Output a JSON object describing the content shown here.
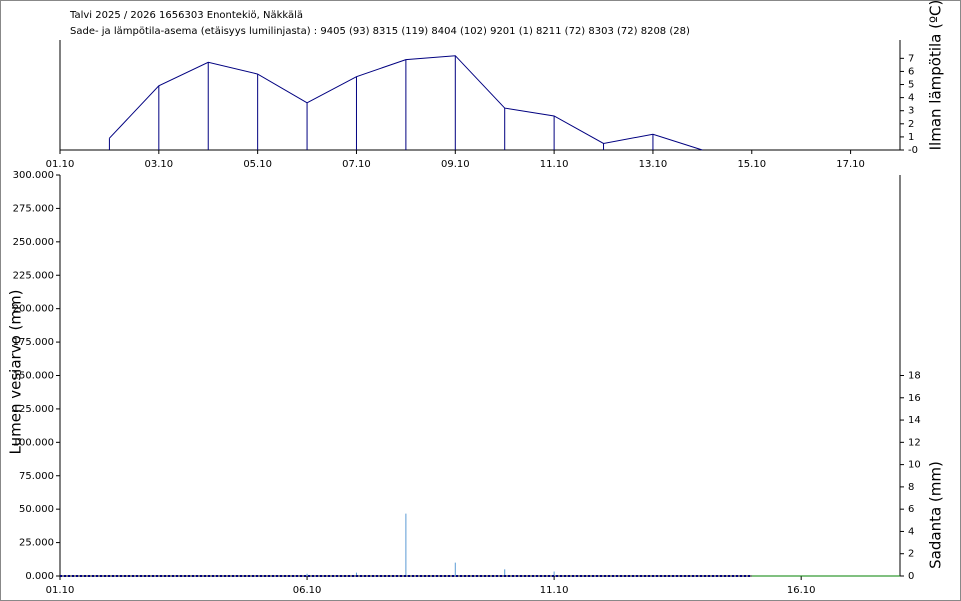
{
  "chart_data": [
    {
      "type": "line",
      "title": "Talvi 2025 / 2026 1656303 Enontekiö, Näkkälä",
      "subtitle": "Sade- ja lämpötila-asema (etäisyys lumilinjasta) :  9405 (93) 8315 (119) 8404 (102) 9201 (1) 8211 (72) 8303 (72) 8208 (28)",
      "y_label": "Ilman lämpötila (ºC)",
      "x": [
        2,
        3,
        4,
        5,
        6,
        7,
        8,
        9,
        10,
        11,
        12,
        13,
        14
      ],
      "values": [
        0.9,
        4.9,
        6.7,
        5.8,
        3.6,
        5.6,
        6.9,
        7.2,
        3.2,
        2.6,
        0.5,
        1.2,
        0
      ],
      "color": "#000080",
      "drop_lines": true,
      "xlim": [
        1,
        18
      ],
      "xticks": [
        {
          "value": 1,
          "label": "01.10"
        },
        {
          "value": 3,
          "label": "03.10"
        },
        {
          "value": 5,
          "label": "05.10"
        },
        {
          "value": 7,
          "label": "07.10"
        },
        {
          "value": 9,
          "label": "09.10"
        },
        {
          "value": 11,
          "label": "11.10"
        },
        {
          "value": 13,
          "label": "13.10"
        },
        {
          "value": 15,
          "label": "15.10"
        },
        {
          "value": 17,
          "label": "17.10"
        }
      ],
      "ylim": [
        0,
        8.4
      ],
      "yticks": [
        {
          "value": 0,
          "label": "-0"
        },
        1,
        2,
        3,
        4,
        5,
        6,
        7
      ]
    },
    {
      "type": "combo",
      "y_label": "Lumen vesiarvo (mm)",
      "y2_label": "Sadanta (mm)",
      "xlim": [
        1,
        18
      ],
      "xticks": [
        {
          "value": 1,
          "label": "01.10"
        },
        {
          "value": 6,
          "label": "06.10"
        },
        {
          "value": 11,
          "label": "11.10"
        },
        {
          "value": 16,
          "label": "16.10"
        }
      ],
      "ylim": [
        0,
        300
      ],
      "yticks": [
        {
          "value": 0,
          "label": "0.000"
        },
        {
          "value": 25,
          "label": "25.000"
        },
        {
          "value": 50,
          "label": "50.000"
        },
        {
          "value": 75,
          "label": "75.000"
        },
        {
          "value": 100,
          "label": "100.000"
        },
        {
          "value": 125,
          "label": "125.000"
        },
        {
          "value": 150,
          "label": "150.000"
        },
        {
          "value": 175,
          "label": "175.000"
        },
        {
          "value": 200,
          "label": "200.000"
        },
        {
          "value": 225,
          "label": "225.000"
        },
        {
          "value": 250,
          "label": "250.000"
        },
        {
          "value": 275,
          "label": "275.000"
        },
        {
          "value": 300,
          "label": "300.000"
        }
      ],
      "y2lim": [
        0,
        36
      ],
      "y2ticks": [
        0,
        2,
        4,
        6,
        8,
        10,
        12,
        14,
        16,
        18
      ],
      "series": [
        {
          "type": "bar",
          "axis": "y2",
          "color": "#5b9bd5",
          "x": [
            6,
            7,
            8,
            9,
            10,
            11
          ],
          "values": [
            0.2,
            0.3,
            5.6,
            1.2,
            0.6,
            0.4
          ]
        },
        {
          "type": "line",
          "dashed": true,
          "color": "#000080",
          "x": [
            1,
            15
          ],
          "values": [
            0,
            0
          ]
        },
        {
          "type": "line",
          "color": "#008000",
          "x": [
            15,
            18
          ],
          "values": [
            0,
            0
          ]
        }
      ]
    }
  ]
}
